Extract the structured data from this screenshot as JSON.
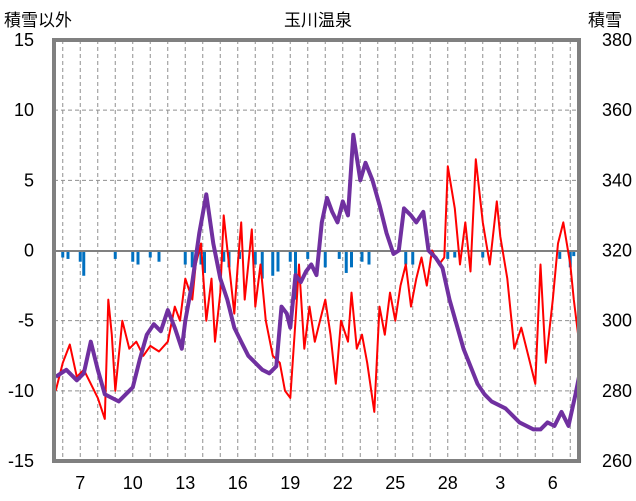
{
  "chart_data": {
    "type": "line",
    "title": "玉川温泉",
    "left_axis_label": "積雪以外",
    "right_axis_label": "積雪",
    "x_tick_labels": [
      "7",
      "10",
      "13",
      "16",
      "19",
      "22",
      "25",
      "28",
      "3",
      "6"
    ],
    "left_y_ticks": [
      "15",
      "10",
      "5",
      "0",
      "-5",
      "-10",
      "-15"
    ],
    "right_y_ticks": [
      "380",
      "360",
      "340",
      "320",
      "300",
      "280",
      "260"
    ],
    "ylim_left": [
      -15,
      15
    ],
    "ylim_right": [
      260,
      380
    ],
    "x_range_days": [
      5.5,
      35.5
    ],
    "grid": {
      "vertical": "dashed, daily",
      "horizontal": "dashed at 5-unit steps"
    },
    "colors": {
      "temperature": "#ff0000",
      "snow_depth": "#7030a0",
      "precip": "#0070c0",
      "frame": "#808080"
    },
    "series": [
      {
        "axis": "left",
        "color": "#ff0000",
        "points": [
          [
            5.6,
            -10
          ],
          [
            6.0,
            -8
          ],
          [
            6.4,
            -6.7
          ],
          [
            6.8,
            -9
          ],
          [
            7.2,
            -8.5
          ],
          [
            7.6,
            -9.5
          ],
          [
            8.0,
            -10.5
          ],
          [
            8.4,
            -12
          ],
          [
            8.6,
            -3.5
          ],
          [
            8.8,
            -6
          ],
          [
            9.0,
            -10
          ],
          [
            9.4,
            -5
          ],
          [
            9.8,
            -7
          ],
          [
            10.2,
            -6.5
          ],
          [
            10.6,
            -7.5
          ],
          [
            11.0,
            -6.8
          ],
          [
            11.5,
            -7.2
          ],
          [
            12.0,
            -6.5
          ],
          [
            12.4,
            -4
          ],
          [
            12.7,
            -5
          ],
          [
            13.0,
            -2
          ],
          [
            13.4,
            -3.5
          ],
          [
            13.6,
            -1
          ],
          [
            13.9,
            0.5
          ],
          [
            14.2,
            -5
          ],
          [
            14.5,
            -2
          ],
          [
            14.7,
            -6.5
          ],
          [
            15.0,
            -3
          ],
          [
            15.2,
            2.5
          ],
          [
            15.5,
            -1
          ],
          [
            15.8,
            -4.5
          ],
          [
            16.0,
            -1
          ],
          [
            16.2,
            2
          ],
          [
            16.4,
            -3.5
          ],
          [
            16.6,
            -1
          ],
          [
            16.8,
            1.5
          ],
          [
            17.0,
            -4
          ],
          [
            17.3,
            -1
          ],
          [
            17.6,
            -5
          ],
          [
            18.0,
            -7.5
          ],
          [
            18.4,
            -8
          ],
          [
            18.7,
            -10
          ],
          [
            19.0,
            -10.5
          ],
          [
            19.3,
            -5
          ],
          [
            19.5,
            -1
          ],
          [
            19.8,
            -7
          ],
          [
            20.1,
            -4
          ],
          [
            20.4,
            -6.5
          ],
          [
            20.7,
            -5
          ],
          [
            21.0,
            -3.5
          ],
          [
            21.3,
            -6
          ],
          [
            21.6,
            -9.5
          ],
          [
            21.9,
            -5
          ],
          [
            22.3,
            -6.5
          ],
          [
            22.5,
            -3
          ],
          [
            22.8,
            -7
          ],
          [
            23.1,
            -6
          ],
          [
            23.4,
            -8
          ],
          [
            23.8,
            -11.5
          ],
          [
            24.1,
            -4
          ],
          [
            24.4,
            -6
          ],
          [
            24.7,
            -3
          ],
          [
            25.0,
            -5
          ],
          [
            25.3,
            -2.5
          ],
          [
            25.6,
            -1
          ],
          [
            25.9,
            -4
          ],
          [
            26.2,
            -2
          ],
          [
            26.5,
            -0.5
          ],
          [
            26.8,
            -2.5
          ],
          [
            27.1,
            0
          ],
          [
            27.5,
            -1
          ],
          [
            27.8,
            -0.5
          ],
          [
            28.0,
            6
          ],
          [
            28.4,
            3
          ],
          [
            28.7,
            -1
          ],
          [
            29.0,
            2
          ],
          [
            29.3,
            -1.5
          ],
          [
            29.6,
            6.5
          ],
          [
            30.0,
            2
          ],
          [
            30.4,
            -1
          ],
          [
            30.8,
            3.5
          ],
          [
            31.0,
            1
          ],
          [
            31.4,
            -2
          ],
          [
            31.8,
            -7
          ],
          [
            32.2,
            -5.5
          ],
          [
            32.6,
            -7.5
          ],
          [
            33.0,
            -9.5
          ],
          [
            33.3,
            -1
          ],
          [
            33.6,
            -8
          ],
          [
            34.0,
            -3.5
          ],
          [
            34.3,
            0.5
          ],
          [
            34.6,
            2
          ],
          [
            35.0,
            -1
          ],
          [
            35.2,
            -3.5
          ],
          [
            35.5,
            -6.5
          ]
        ]
      },
      {
        "axis": "right",
        "color": "#7030a0",
        "points": [
          [
            5.6,
            284
          ],
          [
            6.2,
            286
          ],
          [
            6.8,
            283
          ],
          [
            7.2,
            285
          ],
          [
            7.6,
            294
          ],
          [
            8.0,
            286
          ],
          [
            8.4,
            279
          ],
          [
            8.8,
            278
          ],
          [
            9.2,
            277
          ],
          [
            9.6,
            279
          ],
          [
            10.0,
            281
          ],
          [
            10.4,
            289
          ],
          [
            10.8,
            296
          ],
          [
            11.2,
            299
          ],
          [
            11.6,
            297
          ],
          [
            12.0,
            303
          ],
          [
            12.4,
            298
          ],
          [
            12.8,
            292
          ],
          [
            13.0,
            300
          ],
          [
            13.4,
            311
          ],
          [
            13.8,
            325
          ],
          [
            14.2,
            336
          ],
          [
            14.6,
            322
          ],
          [
            15.0,
            312
          ],
          [
            15.4,
            306
          ],
          [
            15.8,
            298
          ],
          [
            16.2,
            294
          ],
          [
            16.6,
            290
          ],
          [
            17.0,
            288
          ],
          [
            17.4,
            286
          ],
          [
            17.8,
            285
          ],
          [
            18.2,
            287
          ],
          [
            18.5,
            304
          ],
          [
            18.8,
            302
          ],
          [
            19.0,
            298
          ],
          [
            19.3,
            313
          ],
          [
            19.6,
            311
          ],
          [
            19.9,
            314
          ],
          [
            20.2,
            316
          ],
          [
            20.5,
            313
          ],
          [
            20.8,
            328
          ],
          [
            21.1,
            335
          ],
          [
            21.4,
            331
          ],
          [
            21.7,
            328
          ],
          [
            22.0,
            334
          ],
          [
            22.3,
            330
          ],
          [
            22.6,
            353
          ],
          [
            23.0,
            340
          ],
          [
            23.3,
            345
          ],
          [
            23.7,
            340
          ],
          [
            24.1,
            333
          ],
          [
            24.5,
            325
          ],
          [
            24.9,
            319
          ],
          [
            25.2,
            320
          ],
          [
            25.5,
            332
          ],
          [
            25.9,
            330
          ],
          [
            26.2,
            328
          ],
          [
            26.6,
            331
          ],
          [
            26.9,
            320
          ],
          [
            27.3,
            318
          ],
          [
            27.7,
            315
          ],
          [
            28.1,
            306
          ],
          [
            28.5,
            299
          ],
          [
            28.9,
            292
          ],
          [
            29.3,
            287
          ],
          [
            29.7,
            282
          ],
          [
            30.1,
            279
          ],
          [
            30.5,
            277
          ],
          [
            30.9,
            276
          ],
          [
            31.3,
            275
          ],
          [
            31.7,
            273
          ],
          [
            32.1,
            271
          ],
          [
            32.5,
            270
          ],
          [
            32.9,
            269
          ],
          [
            33.3,
            269
          ],
          [
            33.7,
            271
          ],
          [
            34.1,
            270
          ],
          [
            34.5,
            274
          ],
          [
            34.9,
            270
          ],
          [
            35.3,
            279
          ],
          [
            35.5,
            284
          ]
        ]
      },
      {
        "axis": "left",
        "color": "#0070c0",
        "type": "bar",
        "points": [
          [
            6.0,
            -0.5
          ],
          [
            6.3,
            -0.6
          ],
          [
            7.0,
            -0.8
          ],
          [
            7.2,
            -1.8
          ],
          [
            9.0,
            -0.6
          ],
          [
            10.0,
            -0.8
          ],
          [
            10.3,
            -1.0
          ],
          [
            11.0,
            -0.5
          ],
          [
            11.5,
            -0.8
          ],
          [
            13.0,
            -1.0
          ],
          [
            13.4,
            -1.2
          ],
          [
            13.9,
            -1.0
          ],
          [
            14.1,
            -1.6
          ],
          [
            15.2,
            -0.8
          ],
          [
            15.5,
            -1.2
          ],
          [
            16.1,
            -0.6
          ],
          [
            17.0,
            -1.0
          ],
          [
            17.4,
            -2.0
          ],
          [
            18.0,
            -1.8
          ],
          [
            18.3,
            -1.5
          ],
          [
            19.0,
            -0.8
          ],
          [
            19.3,
            -3.5
          ],
          [
            20.0,
            -0.6
          ],
          [
            21.0,
            -1.2
          ],
          [
            21.8,
            -0.6
          ],
          [
            22.2,
            -1.6
          ],
          [
            22.5,
            -1.2
          ],
          [
            23.1,
            -0.8
          ],
          [
            23.5,
            -1.0
          ],
          [
            25.6,
            -1.0
          ],
          [
            26.0,
            -1.0
          ],
          [
            28.0,
            -0.6
          ],
          [
            28.4,
            -0.5
          ],
          [
            30.0,
            -0.5
          ],
          [
            34.4,
            -0.6
          ],
          [
            35.0,
            -1.2
          ],
          [
            35.2,
            -0.4
          ]
        ]
      }
    ]
  }
}
